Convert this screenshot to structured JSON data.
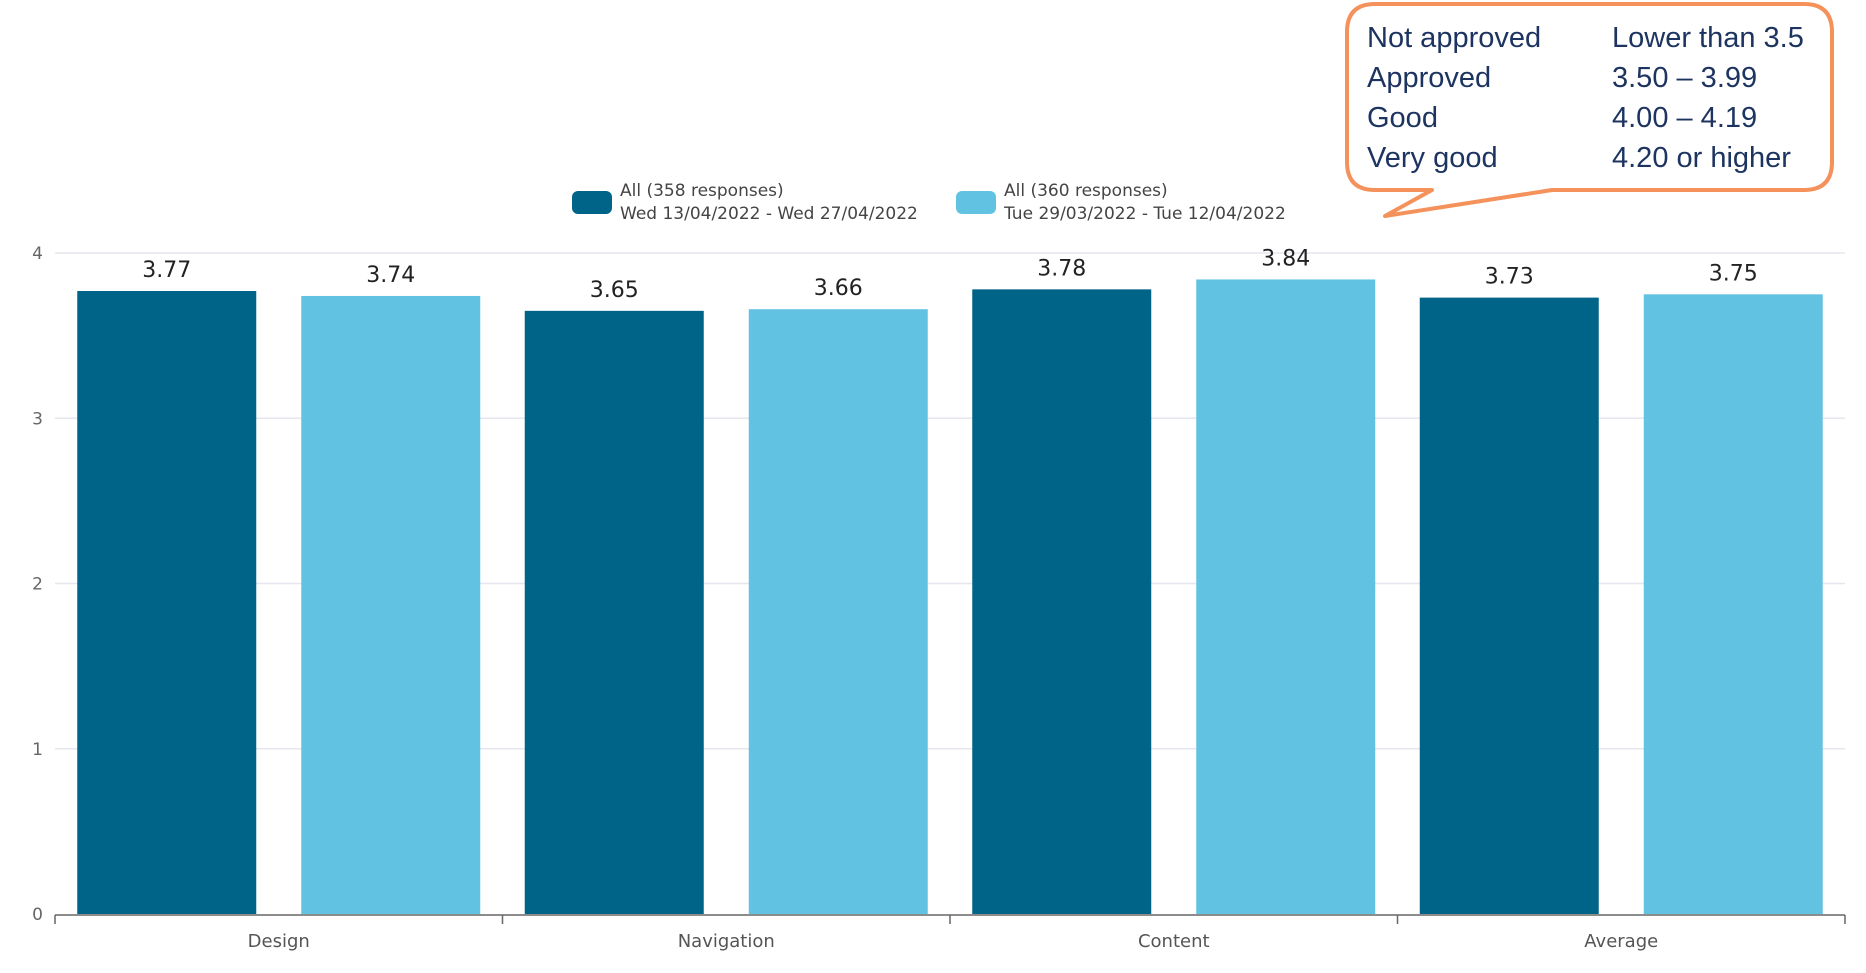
{
  "chart_data": {
    "type": "bar",
    "categories": [
      "Design",
      "Navigation",
      "Content",
      "Average"
    ],
    "series": [
      {
        "name": "All (358 responses)",
        "subtitle": "Wed 13/04/2022 - Wed 27/04/2022",
        "color": "#006488",
        "values": [
          3.77,
          3.65,
          3.78,
          3.73
        ],
        "labels": [
          "3.77",
          "3.65",
          "3.78",
          "3.73"
        ]
      },
      {
        "name": "All (360 responses)",
        "subtitle": "Tue 29/03/2022 - Tue 12/04/2022",
        "color": "#62c2e2",
        "values": [
          3.74,
          3.66,
          3.84,
          3.75
        ],
        "labels": [
          "3.74",
          "3.66",
          "3.84",
          "3.75"
        ]
      }
    ],
    "ylim": [
      0,
      4
    ],
    "yticks": [
      "0",
      "1",
      "2",
      "3",
      "4"
    ],
    "grid": true,
    "legend_position": "top-center"
  },
  "callout": {
    "border_color": "#f5915a",
    "rows": [
      {
        "label": "Not approved",
        "range": "Lower than 3.5"
      },
      {
        "label": "Approved",
        "range": "3.50 – 3.99"
      },
      {
        "label": "Good",
        "range": "4.00 – 4.19"
      },
      {
        "label": "Very good",
        "range": "4.20 or higher"
      }
    ]
  }
}
